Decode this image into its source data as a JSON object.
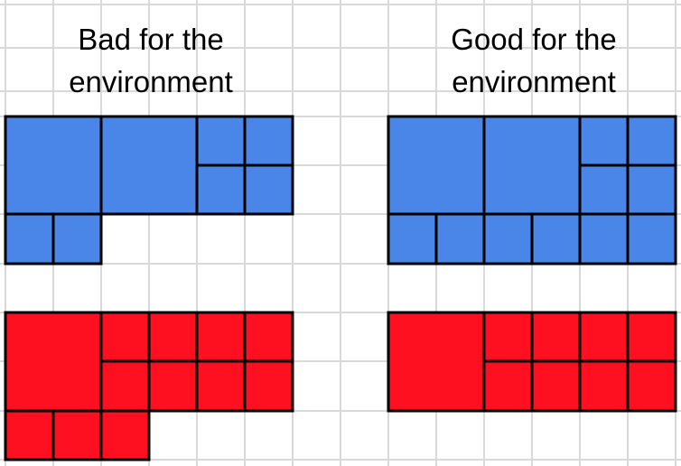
{
  "headings": {
    "left": [
      "Bad for the",
      "environment"
    ],
    "right": [
      "Good for the",
      "environment"
    ]
  },
  "colors": {
    "grid_line": "#d9d9d9",
    "border": "#000000",
    "blue_fill": "#4a86e8",
    "red_fill": "#ff1020",
    "background": "#ffffff"
  },
  "groups": [
    {
      "panel": "left",
      "color": "blue",
      "blocks": [
        {
          "col": 0,
          "row": 0,
          "w": 2,
          "h": 2
        },
        {
          "col": 2,
          "row": 0,
          "w": 2,
          "h": 2
        },
        {
          "col": 4,
          "row": 0,
          "w": 1,
          "h": 1
        },
        {
          "col": 5,
          "row": 0,
          "w": 1,
          "h": 1
        },
        {
          "col": 4,
          "row": 1,
          "w": 1,
          "h": 1
        },
        {
          "col": 5,
          "row": 1,
          "w": 1,
          "h": 1
        },
        {
          "col": 0,
          "row": 2,
          "w": 1,
          "h": 1
        },
        {
          "col": 1,
          "row": 2,
          "w": 1,
          "h": 1
        }
      ]
    },
    {
      "panel": "right",
      "color": "blue",
      "blocks": [
        {
          "col": 0,
          "row": 0,
          "w": 2,
          "h": 2
        },
        {
          "col": 2,
          "row": 0,
          "w": 2,
          "h": 2
        },
        {
          "col": 4,
          "row": 0,
          "w": 1,
          "h": 1
        },
        {
          "col": 5,
          "row": 0,
          "w": 1,
          "h": 1
        },
        {
          "col": 4,
          "row": 1,
          "w": 1,
          "h": 1
        },
        {
          "col": 5,
          "row": 1,
          "w": 1,
          "h": 1
        },
        {
          "col": 0,
          "row": 2,
          "w": 1,
          "h": 1
        },
        {
          "col": 1,
          "row": 2,
          "w": 1,
          "h": 1
        },
        {
          "col": 2,
          "row": 2,
          "w": 1,
          "h": 1
        },
        {
          "col": 3,
          "row": 2,
          "w": 1,
          "h": 1
        },
        {
          "col": 4,
          "row": 2,
          "w": 1,
          "h": 1
        },
        {
          "col": 5,
          "row": 2,
          "w": 1,
          "h": 1
        }
      ]
    },
    {
      "panel": "left",
      "color": "red",
      "blocks": [
        {
          "col": 0,
          "row": 4,
          "w": 2,
          "h": 2
        },
        {
          "col": 2,
          "row": 4,
          "w": 1,
          "h": 1
        },
        {
          "col": 3,
          "row": 4,
          "w": 1,
          "h": 1
        },
        {
          "col": 4,
          "row": 4,
          "w": 1,
          "h": 1
        },
        {
          "col": 5,
          "row": 4,
          "w": 1,
          "h": 1
        },
        {
          "col": 2,
          "row": 5,
          "w": 1,
          "h": 1
        },
        {
          "col": 3,
          "row": 5,
          "w": 1,
          "h": 1
        },
        {
          "col": 4,
          "row": 5,
          "w": 1,
          "h": 1
        },
        {
          "col": 5,
          "row": 5,
          "w": 1,
          "h": 1
        },
        {
          "col": 0,
          "row": 6,
          "w": 1,
          "h": 1
        },
        {
          "col": 1,
          "row": 6,
          "w": 1,
          "h": 1
        },
        {
          "col": 2,
          "row": 6,
          "w": 1,
          "h": 1
        }
      ]
    },
    {
      "panel": "right",
      "color": "red",
      "blocks": [
        {
          "col": 0,
          "row": 4,
          "w": 2,
          "h": 2
        },
        {
          "col": 2,
          "row": 4,
          "w": 1,
          "h": 1
        },
        {
          "col": 3,
          "row": 4,
          "w": 1,
          "h": 1
        },
        {
          "col": 4,
          "row": 4,
          "w": 1,
          "h": 1
        },
        {
          "col": 5,
          "row": 4,
          "w": 1,
          "h": 1
        },
        {
          "col": 2,
          "row": 5,
          "w": 1,
          "h": 1
        },
        {
          "col": 3,
          "row": 5,
          "w": 1,
          "h": 1
        },
        {
          "col": 4,
          "row": 5,
          "w": 1,
          "h": 1
        },
        {
          "col": 5,
          "row": 5,
          "w": 1,
          "h": 1
        }
      ]
    }
  ]
}
